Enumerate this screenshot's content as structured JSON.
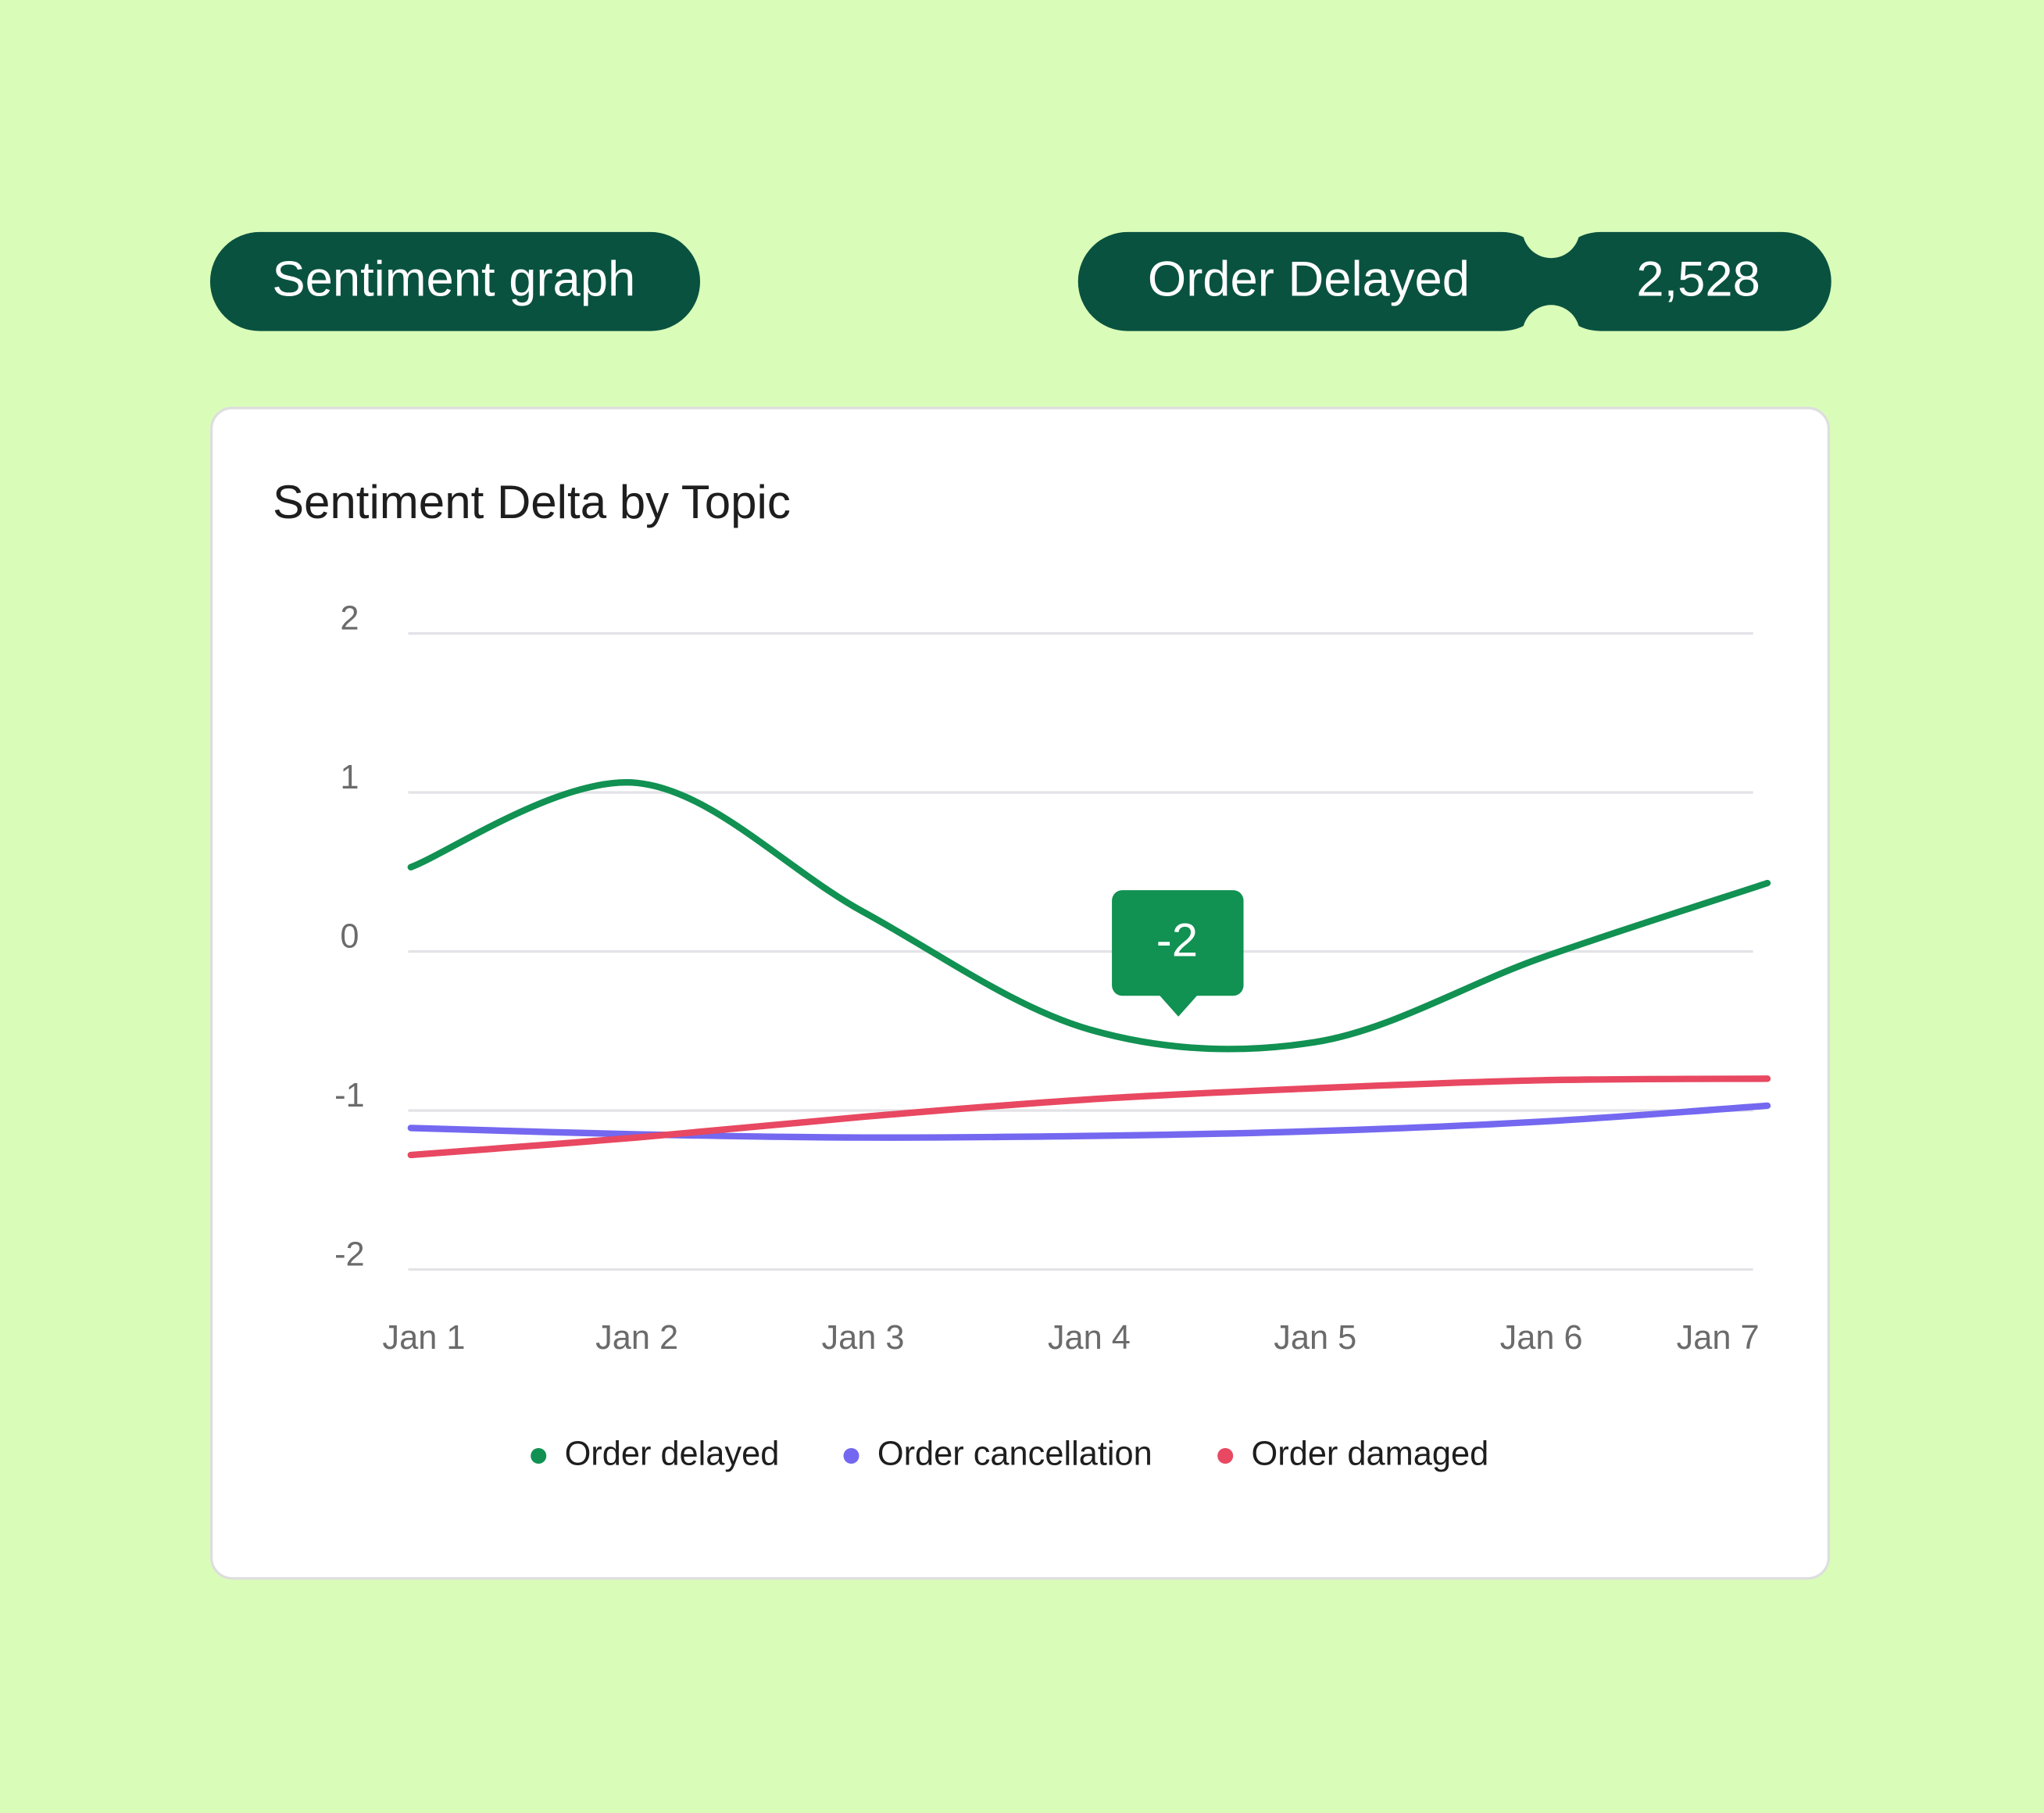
{
  "header": {
    "title": "Sentiment graph",
    "topic": "Order Delayed",
    "count": "2,528"
  },
  "chart_data": {
    "type": "line",
    "title": "Sentiment Delta by Topic",
    "categories": [
      "Jan 1",
      "Jan 2",
      "Jan 3",
      "Jan 4",
      "Jan 5",
      "Jan 6",
      "Jan 7"
    ],
    "series": [
      {
        "name": "Order delayed",
        "color": "#119152",
        "values": [
          0.53,
          1.06,
          0.25,
          -0.49,
          -0.57,
          -0.04,
          0.43
        ]
      },
      {
        "name": "Order cancellation",
        "color": "#7468f0",
        "values": [
          -1.11,
          -1.15,
          -1.17,
          -1.16,
          -1.13,
          -1.07,
          -0.97
        ]
      },
      {
        "name": "Order damaged",
        "color": "#e84861",
        "values": [
          -1.28,
          -1.17,
          -1.04,
          -0.93,
          -0.86,
          -0.81,
          -0.8
        ]
      }
    ],
    "ylim": [
      -2,
      2
    ],
    "yticks": [
      2,
      1,
      0,
      -1,
      -2
    ],
    "grid": true,
    "legend": "bottom",
    "annotation": "-2"
  }
}
